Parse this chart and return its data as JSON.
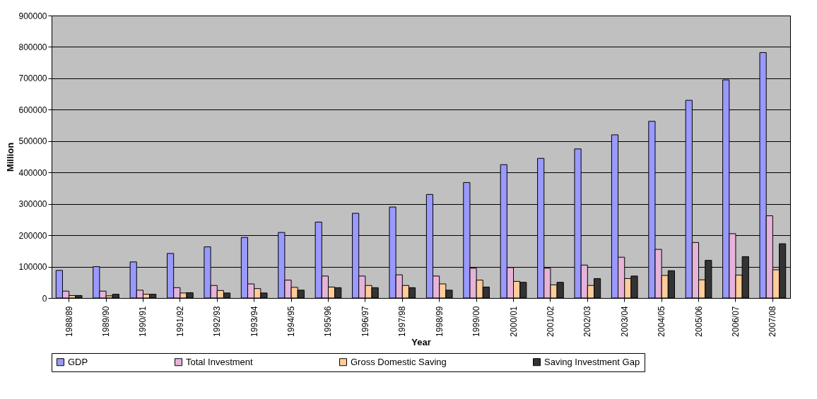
{
  "chart_data": {
    "type": "bar",
    "xlabel": "Year",
    "ylabel": "Million",
    "categories": [
      "1988/89",
      "1989/90",
      "1990/91",
      "1991/92",
      "1992/93",
      "1993/94",
      "1994/95",
      "1995/96",
      "1996/97",
      "1997/98",
      "1998/99",
      "1999/00",
      "2000/01",
      "2001/02",
      "2002/03",
      "2003/04",
      "2004/05",
      "2005/06",
      "2006/07",
      "2007/08"
    ],
    "series": [
      {
        "name": "GDP",
        "color": "#9999ff",
        "values": [
          88000,
          100000,
          115000,
          142000,
          163000,
          193000,
          209000,
          242000,
          270000,
          290000,
          330000,
          368000,
          425000,
          445000,
          475000,
          520000,
          563000,
          630000,
          695000,
          782000
        ]
      },
      {
        "name": "Total Investment",
        "color": "#e6b3d9",
        "values": [
          22000,
          22000,
          25000,
          33000,
          40000,
          45000,
          57000,
          70000,
          70000,
          74000,
          70000,
          95000,
          97000,
          95000,
          105000,
          130000,
          155000,
          177000,
          205000,
          262000
        ]
      },
      {
        "name": "Gross Domestic Saving",
        "color": "#ffcc99",
        "values": [
          8000,
          7000,
          12000,
          16000,
          24000,
          30000,
          34000,
          35000,
          40000,
          40000,
          45000,
          57000,
          53000,
          42000,
          40000,
          62000,
          72000,
          58000,
          73000,
          90000
        ]
      },
      {
        "name": "Saving Investment Gap",
        "color": "#333333",
        "values": [
          8000,
          12000,
          12000,
          17000,
          16000,
          16000,
          25000,
          33000,
          33000,
          33000,
          25000,
          35000,
          50000,
          50000,
          62000,
          70000,
          87000,
          120000,
          132000,
          173000
        ]
      }
    ],
    "ylim": [
      0,
      900000
    ],
    "yticks": [
      0,
      100000,
      200000,
      300000,
      400000,
      500000,
      600000,
      700000,
      800000,
      900000
    ],
    "grid": "y",
    "legend": "bottom"
  }
}
